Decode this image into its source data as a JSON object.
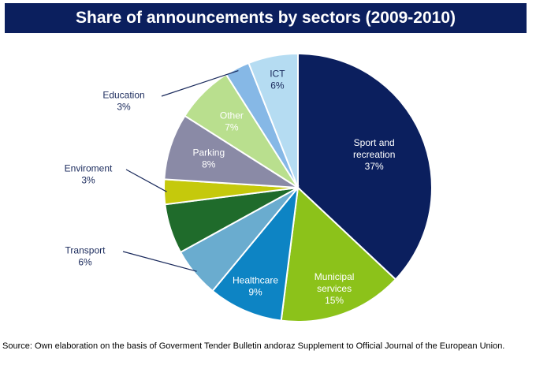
{
  "chart_data": {
    "type": "pie",
    "title": "Share of announcements by sectors (2009-2010)",
    "slices": [
      {
        "label": "Sport and recreation",
        "value_label": "37%",
        "value": 37,
        "color": "#0b1f5e"
      },
      {
        "label": "Municipal services",
        "value_label": "15%",
        "value": 15,
        "color": "#8cc21a"
      },
      {
        "label": "Healthcare",
        "value_label": "9%",
        "value": 9,
        "color": "#0d84c4"
      },
      {
        "label": "Transport",
        "value_label": "6%",
        "value": 6,
        "color": "#6aaccf"
      },
      {
        "label": "",
        "value_label": "",
        "value": 6,
        "color": "#1f6b2b"
      },
      {
        "label": "Enviroment",
        "value_label": "3%",
        "value": 3,
        "color": "#c5c90c"
      },
      {
        "label": "Parking",
        "value_label": "8%",
        "value": 8,
        "color": "#8a8aa6"
      },
      {
        "label": "Other",
        "value_label": "7%",
        "value": 7,
        "color": "#b9df8e"
      },
      {
        "label": "Education",
        "value_label": "3%",
        "value": 3,
        "color": "#86b8e6"
      },
      {
        "label": "ICT",
        "value_label": "6%",
        "value": 6,
        "color": "#b5dcf2"
      }
    ]
  },
  "source": "Source: Own elaboration on the basis of Goverment Tender Bulletin andoraz Supplement to Official Journal of the European Union."
}
